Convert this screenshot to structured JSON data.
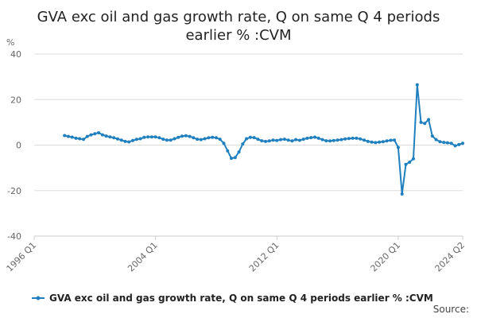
{
  "chart_data": {
    "type": "line",
    "title_line1": "GVA exc oil and gas growth rate, Q on same Q 4 periods",
    "title_line2": "earlier % :CVM",
    "ylabel": "%",
    "ylim": [
      -40,
      40
    ],
    "yticks": [
      -40,
      -20,
      0,
      20,
      40
    ],
    "xlim": [
      "1996 Q1",
      "2024 Q2"
    ],
    "xticks": [
      "1996 Q1",
      "2004 Q1",
      "2012 Q1",
      "2020 Q1",
      "2024 Q2"
    ],
    "grid": true,
    "legend_position": "bottom",
    "series_color": "#1f7fbf",
    "source_label": "Source:",
    "series": [
      {
        "name": "GVA exc oil and gas growth rate, Q on same Q 4 periods earlier % :CVM",
        "x": [
          "1998 Q1",
          "1998 Q2",
          "1998 Q3",
          "1998 Q4",
          "1999 Q1",
          "1999 Q2",
          "1999 Q3",
          "1999 Q4",
          "2000 Q1",
          "2000 Q2",
          "2000 Q3",
          "2000 Q4",
          "2001 Q1",
          "2001 Q2",
          "2001 Q3",
          "2001 Q4",
          "2002 Q1",
          "2002 Q2",
          "2002 Q3",
          "2002 Q4",
          "2003 Q1",
          "2003 Q2",
          "2003 Q3",
          "2003 Q4",
          "2004 Q1",
          "2004 Q2",
          "2004 Q3",
          "2004 Q4",
          "2005 Q1",
          "2005 Q2",
          "2005 Q3",
          "2005 Q4",
          "2006 Q1",
          "2006 Q2",
          "2006 Q3",
          "2006 Q4",
          "2007 Q1",
          "2007 Q2",
          "2007 Q3",
          "2007 Q4",
          "2008 Q1",
          "2008 Q2",
          "2008 Q3",
          "2008 Q4",
          "2009 Q1",
          "2009 Q2",
          "2009 Q3",
          "2009 Q4",
          "2010 Q1",
          "2010 Q2",
          "2010 Q3",
          "2010 Q4",
          "2011 Q1",
          "2011 Q2",
          "2011 Q3",
          "2011 Q4",
          "2012 Q1",
          "2012 Q2",
          "2012 Q3",
          "2012 Q4",
          "2013 Q1",
          "2013 Q2",
          "2013 Q3",
          "2013 Q4",
          "2014 Q1",
          "2014 Q2",
          "2014 Q3",
          "2014 Q4",
          "2015 Q1",
          "2015 Q2",
          "2015 Q3",
          "2015 Q4",
          "2016 Q1",
          "2016 Q2",
          "2016 Q3",
          "2016 Q4",
          "2017 Q1",
          "2017 Q2",
          "2017 Q3",
          "2017 Q4",
          "2018 Q1",
          "2018 Q2",
          "2018 Q3",
          "2018 Q4",
          "2019 Q1",
          "2019 Q2",
          "2019 Q3",
          "2019 Q4",
          "2020 Q1",
          "2020 Q2",
          "2020 Q3",
          "2020 Q4",
          "2021 Q1",
          "2021 Q2",
          "2021 Q3",
          "2021 Q4",
          "2022 Q1",
          "2022 Q2",
          "2022 Q3",
          "2022 Q4",
          "2023 Q1",
          "2023 Q2",
          "2023 Q3",
          "2023 Q4",
          "2024 Q1",
          "2024 Q2"
        ],
        "values": [
          4.2,
          3.8,
          3.5,
          3.0,
          2.8,
          2.5,
          3.8,
          4.5,
          5.0,
          5.4,
          4.5,
          4.0,
          3.6,
          3.2,
          2.7,
          2.2,
          1.6,
          1.4,
          2.0,
          2.5,
          2.8,
          3.4,
          3.6,
          3.6,
          3.6,
          3.2,
          2.6,
          2.2,
          2.2,
          2.8,
          3.4,
          3.9,
          4.1,
          3.8,
          3.2,
          2.6,
          2.4,
          2.8,
          3.2,
          3.4,
          3.2,
          2.6,
          0.8,
          -2.5,
          -5.8,
          -5.5,
          -3.0,
          0.5,
          2.8,
          3.4,
          3.3,
          2.6,
          1.9,
          1.6,
          1.8,
          2.2,
          2.0,
          2.4,
          2.6,
          2.2,
          1.8,
          2.4,
          2.1,
          2.6,
          3.0,
          3.3,
          3.5,
          3.0,
          2.4,
          1.9,
          1.8,
          2.0,
          2.2,
          2.4,
          2.7,
          2.9,
          3.0,
          3.0,
          2.7,
          2.2,
          1.6,
          1.3,
          1.1,
          1.3,
          1.5,
          1.8,
          2.1,
          2.2,
          -1.0,
          -21.5,
          -8.5,
          -7.5,
          -6.0,
          26.5,
          10.0,
          9.5,
          11.2,
          4.0,
          2.4,
          1.5,
          1.2,
          1.0,
          0.8,
          -0.3,
          0.2,
          0.8
        ]
      }
    ]
  }
}
